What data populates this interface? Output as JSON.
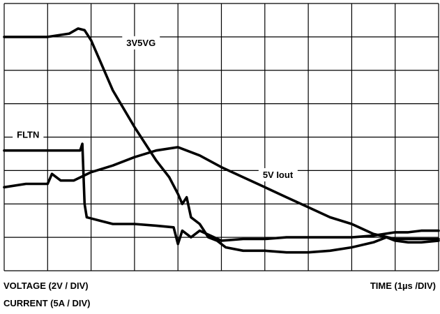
{
  "chart_data": {
    "type": "line",
    "title": "",
    "x_units": "TIME (1µs /DIV)",
    "y_units": [
      "VOLTAGE (2V / DIV)",
      "CURRENT (5A / DIV)"
    ],
    "grid": true,
    "x_divisions": 10,
    "y_divisions": 8,
    "xlim": [
      0,
      10
    ],
    "ylim": [
      0,
      8
    ],
    "series": [
      {
        "name": "3V5VG",
        "x": [
          0,
          1.0,
          1.5,
          1.7,
          1.85,
          2.0,
          2.2,
          2.5,
          3.0,
          3.5,
          3.8,
          4.0,
          4.1,
          4.2,
          4.3,
          4.5,
          4.7,
          4.9,
          5.1,
          5.5,
          6.0,
          6.5,
          7.0,
          7.5,
          8.0,
          8.5,
          8.8,
          9.0,
          9.3,
          9.6,
          10.0
        ],
        "values": [
          7.0,
          7.0,
          7.1,
          7.25,
          7.2,
          6.9,
          6.3,
          5.4,
          4.3,
          3.3,
          2.8,
          2.3,
          2.0,
          2.2,
          1.6,
          1.4,
          1.0,
          0.9,
          0.7,
          0.6,
          0.6,
          0.55,
          0.55,
          0.6,
          0.7,
          0.85,
          1.0,
          0.9,
          0.85,
          0.85,
          0.9
        ]
      },
      {
        "name": "FLTN",
        "x": [
          0,
          1.0,
          1.5,
          1.75,
          1.8,
          1.85,
          1.9,
          2.2,
          2.5,
          3.0,
          3.5,
          3.9,
          4.0,
          4.1,
          4.3,
          4.5,
          5.0,
          5.5,
          6.0,
          6.5,
          7.0,
          7.5,
          8.0,
          8.5,
          9.0,
          9.3,
          9.6,
          10.0
        ],
        "values": [
          3.6,
          3.6,
          3.6,
          3.6,
          3.8,
          2.0,
          1.6,
          1.5,
          1.4,
          1.4,
          1.35,
          1.3,
          0.8,
          1.2,
          1.0,
          1.2,
          0.9,
          0.95,
          0.95,
          1.0,
          1.0,
          1.0,
          1.0,
          1.05,
          1.15,
          1.15,
          1.2,
          1.2
        ]
      },
      {
        "name": "5V Iout",
        "x": [
          0,
          0.5,
          1.0,
          1.1,
          1.3,
          1.6,
          2.0,
          2.5,
          3.0,
          3.5,
          4.0,
          4.5,
          5.0,
          5.5,
          6.0,
          6.5,
          7.0,
          7.5,
          8.0,
          8.5,
          9.0,
          9.5,
          10.0
        ],
        "values": [
          2.5,
          2.6,
          2.6,
          2.9,
          2.7,
          2.7,
          2.95,
          3.15,
          3.4,
          3.6,
          3.7,
          3.45,
          3.1,
          2.8,
          2.5,
          2.2,
          1.9,
          1.6,
          1.4,
          1.1,
          0.95,
          0.95,
          0.95
        ]
      }
    ],
    "annotations": [
      {
        "text": "3V5VG",
        "x": 3.15,
        "y": 6.8,
        "series": "3V5VG"
      },
      {
        "text": "FLTN",
        "x": 0.55,
        "y": 4.05,
        "series": "FLTN"
      },
      {
        "text": "5V Iout",
        "x": 6.3,
        "y": 2.85,
        "series": "5V Iout"
      }
    ]
  },
  "labels": {
    "voltage_scale": "VOLTAGE (2V / DIV)",
    "current_scale": "CURRENT (5A / DIV)",
    "time_scale": "TIME (1µs /DIV)"
  }
}
